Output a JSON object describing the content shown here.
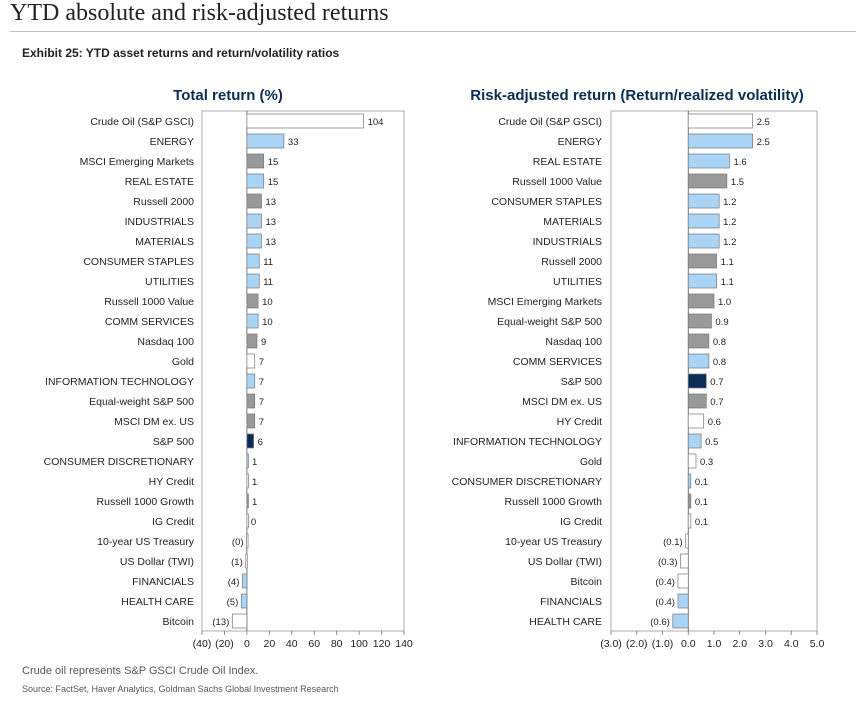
{
  "header": {
    "title": "YTD absolute and risk-adjusted returns",
    "exhibit": "Exhibit 25: YTD asset returns and return/volatility ratios"
  },
  "colors": {
    "white_bar": "#ffffff",
    "light_blue": "#a9d4f5",
    "gray": "#999999",
    "navy": "#0b2c56",
    "title_blue": "#0b2c56"
  },
  "chart_data": [
    {
      "type": "bar",
      "orientation": "horizontal",
      "title": "Total return (%)",
      "categories": [
        "Crude Oil (S&P GSCI)",
        "ENERGY",
        "MSCI Emerging Markets",
        "REAL ESTATE",
        "Russell 2000",
        "INDUSTRIALS",
        "MATERIALS",
        "CONSUMER STAPLES",
        "UTILITIES",
        "Russell 1000 Value",
        "COMM SERVICES",
        "Nasdaq 100",
        "Gold",
        "INFORMATION TECHNOLOGY",
        "Equal-weight S&P 500",
        "MSCI DM ex. US",
        "S&P 500",
        "CONSUMER DISCRETIONARY",
        "HY Credit",
        "Russell 1000 Growth",
        "IG Credit",
        "10-year US Treasury",
        "US Dollar (TWI)",
        "FINANCIALS",
        "HEALTH CARE",
        "Bitcoin"
      ],
      "values": [
        104,
        33,
        15,
        15,
        13,
        13,
        13,
        11,
        11,
        10,
        10,
        9,
        7,
        7,
        7,
        7,
        6,
        1,
        1,
        1,
        0,
        -0.3,
        -1,
        -4,
        -5,
        -13
      ],
      "labels": [
        "104",
        "33",
        "15",
        "15",
        "13",
        "13",
        "13",
        "11",
        "11",
        "10",
        "10",
        "9",
        "7",
        "7",
        "7",
        "7",
        "6",
        "1",
        "1",
        "1",
        "0",
        "(0)",
        "(1)",
        "(4)",
        "(5)",
        "(13)"
      ],
      "colors": [
        "white",
        "blue",
        "gray",
        "blue",
        "gray",
        "blue",
        "blue",
        "blue",
        "blue",
        "gray",
        "blue",
        "gray",
        "white",
        "blue",
        "gray",
        "gray",
        "navy",
        "blue",
        "white",
        "gray",
        "white",
        "white",
        "white",
        "blue",
        "blue",
        "white"
      ],
      "xlim": [
        -40,
        140
      ],
      "xticks": [
        -40,
        -20,
        0,
        20,
        40,
        60,
        80,
        100,
        120,
        140
      ],
      "xtick_labels": [
        "(40)",
        "(20)",
        "0",
        "20",
        "40",
        "60",
        "80",
        "100",
        "120",
        "140"
      ]
    },
    {
      "type": "bar",
      "orientation": "horizontal",
      "title": "Risk-adjusted return (Return/realized volatility)",
      "categories": [
        "Crude Oil (S&P GSCI)",
        "ENERGY",
        "REAL ESTATE",
        "Russell 1000 Value",
        "CONSUMER STAPLES",
        "MATERIALS",
        "INDUSTRIALS",
        "Russell 2000",
        "UTILITIES",
        "MSCI Emerging Markets",
        "Equal-weight S&P 500",
        "Nasdaq 100",
        "COMM SERVICES",
        "S&P 500",
        "MSCI DM ex. US",
        "HY Credit",
        "INFORMATION TECHNOLOGY",
        "Gold",
        "CONSUMER DISCRETIONARY",
        "Russell 1000 Growth",
        "IG Credit",
        "10-year US Treasury",
        "US Dollar (TWI)",
        "Bitcoin",
        "FINANCIALS",
        "HEALTH CARE"
      ],
      "values": [
        2.5,
        2.5,
        1.6,
        1.5,
        1.2,
        1.2,
        1.2,
        1.1,
        1.1,
        1.0,
        0.9,
        0.8,
        0.8,
        0.7,
        0.7,
        0.6,
        0.5,
        0.3,
        0.1,
        0.1,
        0.1,
        -0.1,
        -0.3,
        -0.4,
        -0.4,
        -0.6
      ],
      "labels": [
        "2.5",
        "2.5",
        "1.6",
        "1.5",
        "1.2",
        "1.2",
        "1.2",
        "1.1",
        "1.1",
        "1.0",
        "0.9",
        "0.8",
        "0.8",
        "0.7",
        "0.7",
        "0.6",
        "0.5",
        "0.3",
        "0.1",
        "0.1",
        "0.1",
        "(0.1)",
        "(0.3)",
        "(0.4)",
        "(0.4)",
        "(0.6)"
      ],
      "colors": [
        "white",
        "blue",
        "blue",
        "gray",
        "blue",
        "blue",
        "blue",
        "gray",
        "blue",
        "gray",
        "gray",
        "gray",
        "blue",
        "navy",
        "gray",
        "white",
        "blue",
        "white",
        "blue",
        "gray",
        "white",
        "white",
        "white",
        "white",
        "blue",
        "blue"
      ],
      "xlim": [
        -3,
        5
      ],
      "xticks": [
        -3,
        -2,
        -1,
        0,
        1,
        2,
        3,
        4,
        5
      ],
      "xtick_labels": [
        "(3.0)",
        "(2.0)",
        "(1.0)",
        "0.0",
        "1.0",
        "2.0",
        "3.0",
        "4.0",
        "5.0"
      ]
    }
  ],
  "footer": {
    "note": "Crude oil represents S&P GSCI Crude Oil Index.",
    "source": "Source: FactSet, Haver Analytics, Goldman Sachs Global Investment Research"
  }
}
